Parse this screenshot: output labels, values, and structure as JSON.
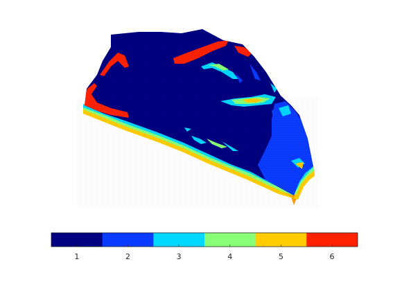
{
  "figure": {
    "background": "#ffffff",
    "render": "3d-voxel-grid-surface"
  },
  "colorbar": {
    "orientation": "horizontal",
    "placement": "bottom",
    "colormap": "jet",
    "categories": [
      {
        "value": 1,
        "label": "1",
        "color": "#000080"
      },
      {
        "value": 2,
        "label": "2",
        "color": "#0a3cff"
      },
      {
        "value": 3,
        "label": "3",
        "color": "#00d8ff"
      },
      {
        "value": 4,
        "label": "4",
        "color": "#88ff77"
      },
      {
        "value": 5,
        "label": "5",
        "color": "#ffcc00"
      },
      {
        "value": 6,
        "label": "6",
        "color": "#ff2200"
      }
    ]
  }
}
